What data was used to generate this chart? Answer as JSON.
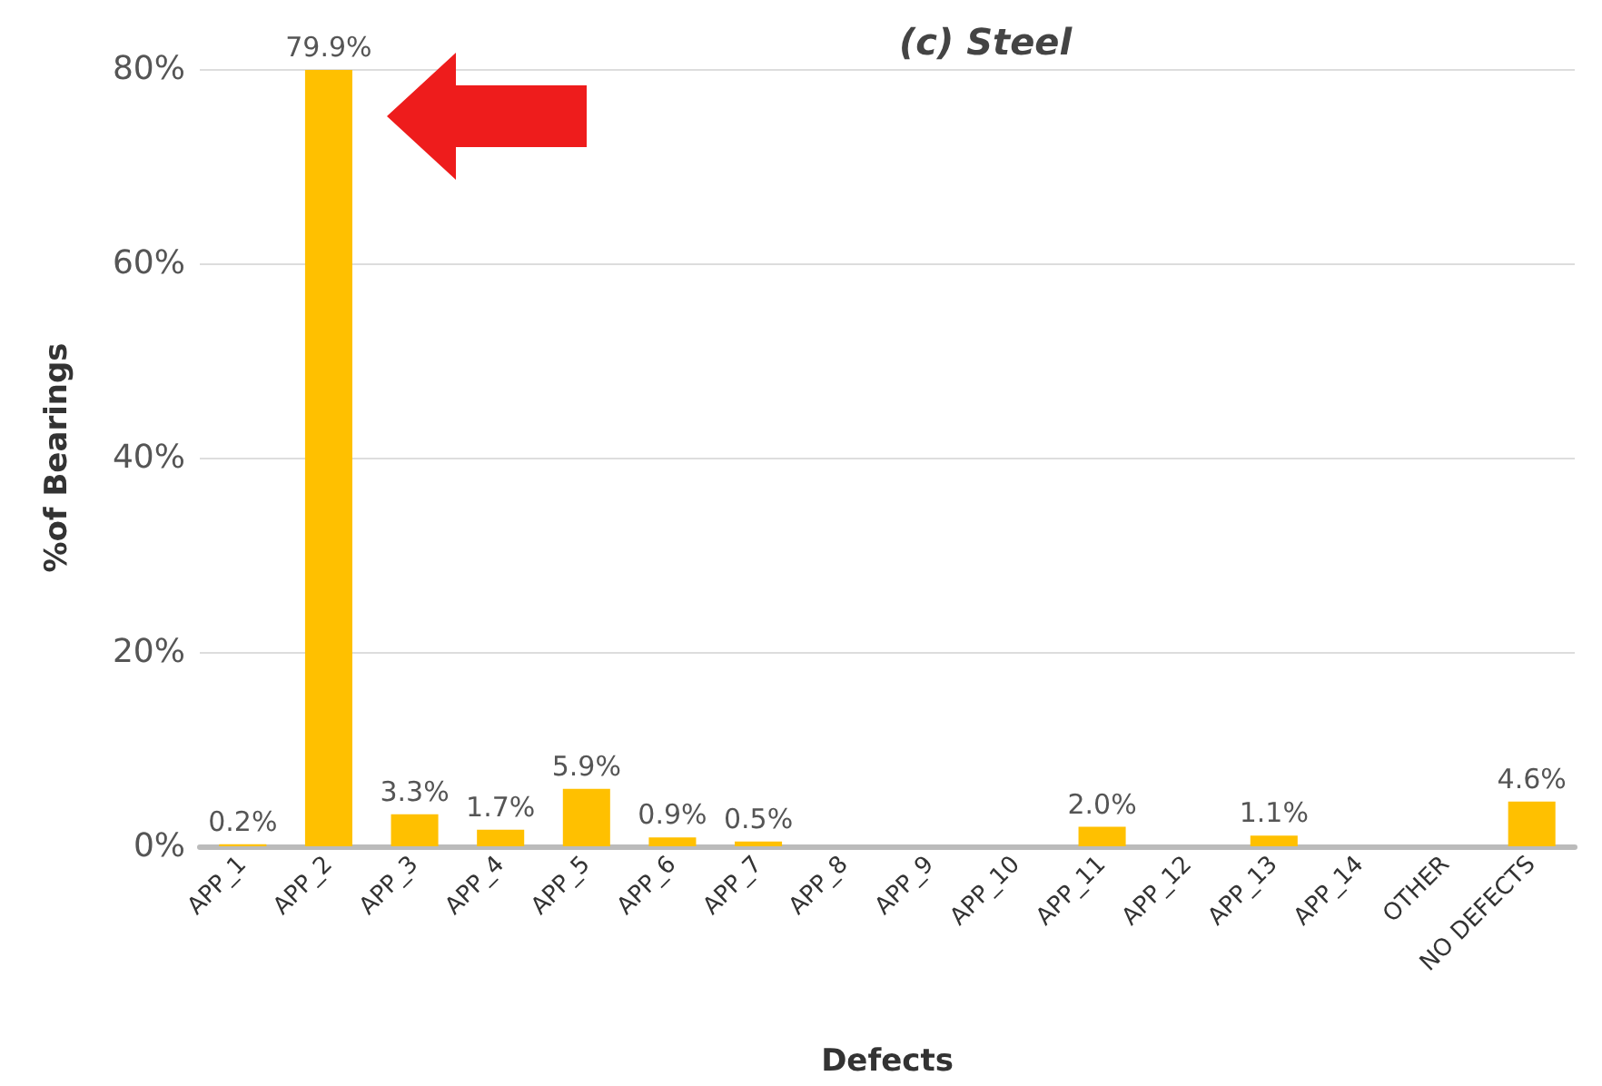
{
  "chart_data": {
    "type": "bar",
    "title": "(c) Steel",
    "xlabel": "Defects",
    "ylabel": "%of Bearings",
    "categories": [
      "APP_1",
      "APP_2",
      "APP_3",
      "APP_4",
      "APP_5",
      "APP_6",
      "APP_7",
      "APP_8",
      "APP_9",
      "APP_10",
      "APP_11",
      "APP_12",
      "APP_13",
      "APP_14",
      "OTHER",
      "NO DEFECTS"
    ],
    "values": [
      0.2,
      79.9,
      3.3,
      1.7,
      5.9,
      0.9,
      0.5,
      0,
      0,
      0,
      2.0,
      0,
      1.1,
      0,
      0,
      4.6
    ],
    "value_labels": [
      "0.2%",
      "79.9%",
      "3.3%",
      "1.7%",
      "5.9%",
      "0.9%",
      "0.5%",
      null,
      null,
      null,
      "2.0%",
      null,
      "1.1%",
      null,
      null,
      "4.6%"
    ],
    "color": "#ffc000",
    "ylim": [
      0,
      80
    ],
    "yticks": [
      {
        "value": 0,
        "label": "0%"
      },
      {
        "value": 20,
        "label": "20%"
      },
      {
        "value": 40,
        "label": "40%"
      },
      {
        "value": 60,
        "label": "60%"
      },
      {
        "value": 80,
        "label": "80%"
      }
    ],
    "grid": "y"
  }
}
